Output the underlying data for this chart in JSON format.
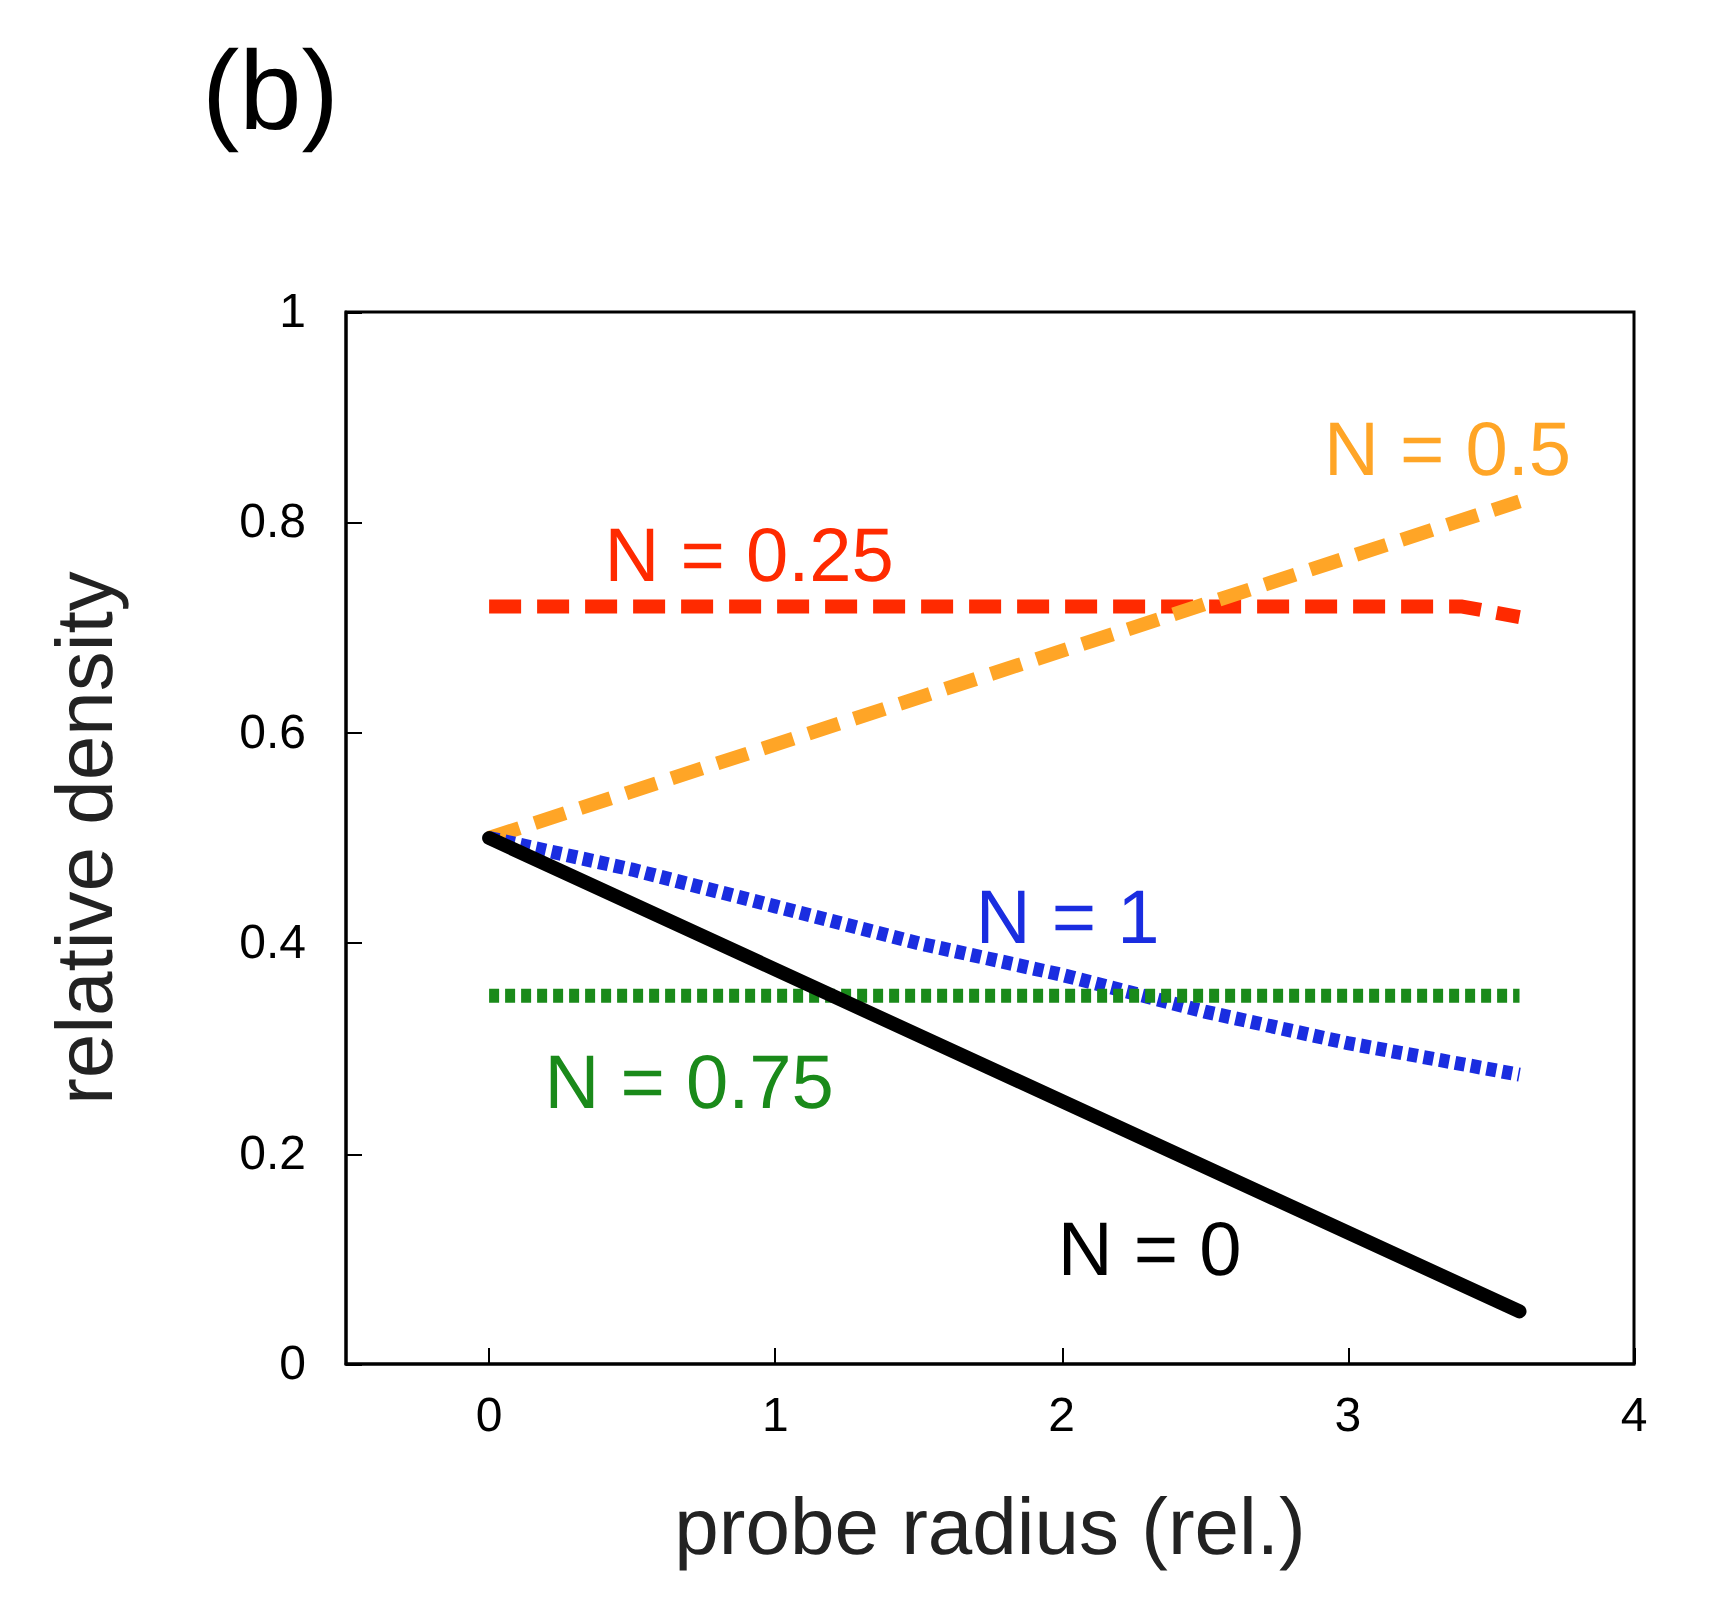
{
  "chart_data": {
    "type": "line",
    "title": "(b)",
    "xlabel": "probe radius (rel.)",
    "ylabel": "relative density",
    "xlim": [
      -0.5,
      4
    ],
    "xticks": [
      0,
      1,
      2,
      3,
      4
    ],
    "ylim": [
      0,
      1
    ],
    "yticks": [
      0,
      0.2,
      0.4,
      0.6,
      0.8,
      1
    ],
    "grid": false,
    "legend": false,
    "marker": "none",
    "series": [
      {
        "name": "N = 0.25",
        "color": "#ff2a00",
        "line_style": "dashed",
        "x": [
          0,
          3.4,
          3.6
        ],
        "values": [
          0.72,
          0.72,
          0.71
        ]
      },
      {
        "name": "N = 0.5",
        "color": "#ffa526",
        "line_style": "dashed",
        "x": [
          0,
          3.6
        ],
        "values": [
          0.5,
          0.82
        ]
      },
      {
        "name": "N = 1",
        "color": "#1a2de0",
        "line_style": "dotted",
        "x": [
          0,
          0.5,
          1,
          1.5,
          2,
          2.5,
          3,
          3.6
        ],
        "values": [
          0.5,
          0.47,
          0.435,
          0.4,
          0.37,
          0.335,
          0.305,
          0.275
        ]
      },
      {
        "name": "N = 0.75",
        "color": "#1a8a1a",
        "line_style": "dotted",
        "x": [
          0,
          3.6
        ],
        "values": [
          0.35,
          0.35
        ]
      },
      {
        "name": "N = 0",
        "color": "#000000",
        "line_style": "solid",
        "x": [
          0,
          3.6
        ],
        "values": [
          0.5,
          0.05
        ]
      }
    ]
  }
}
